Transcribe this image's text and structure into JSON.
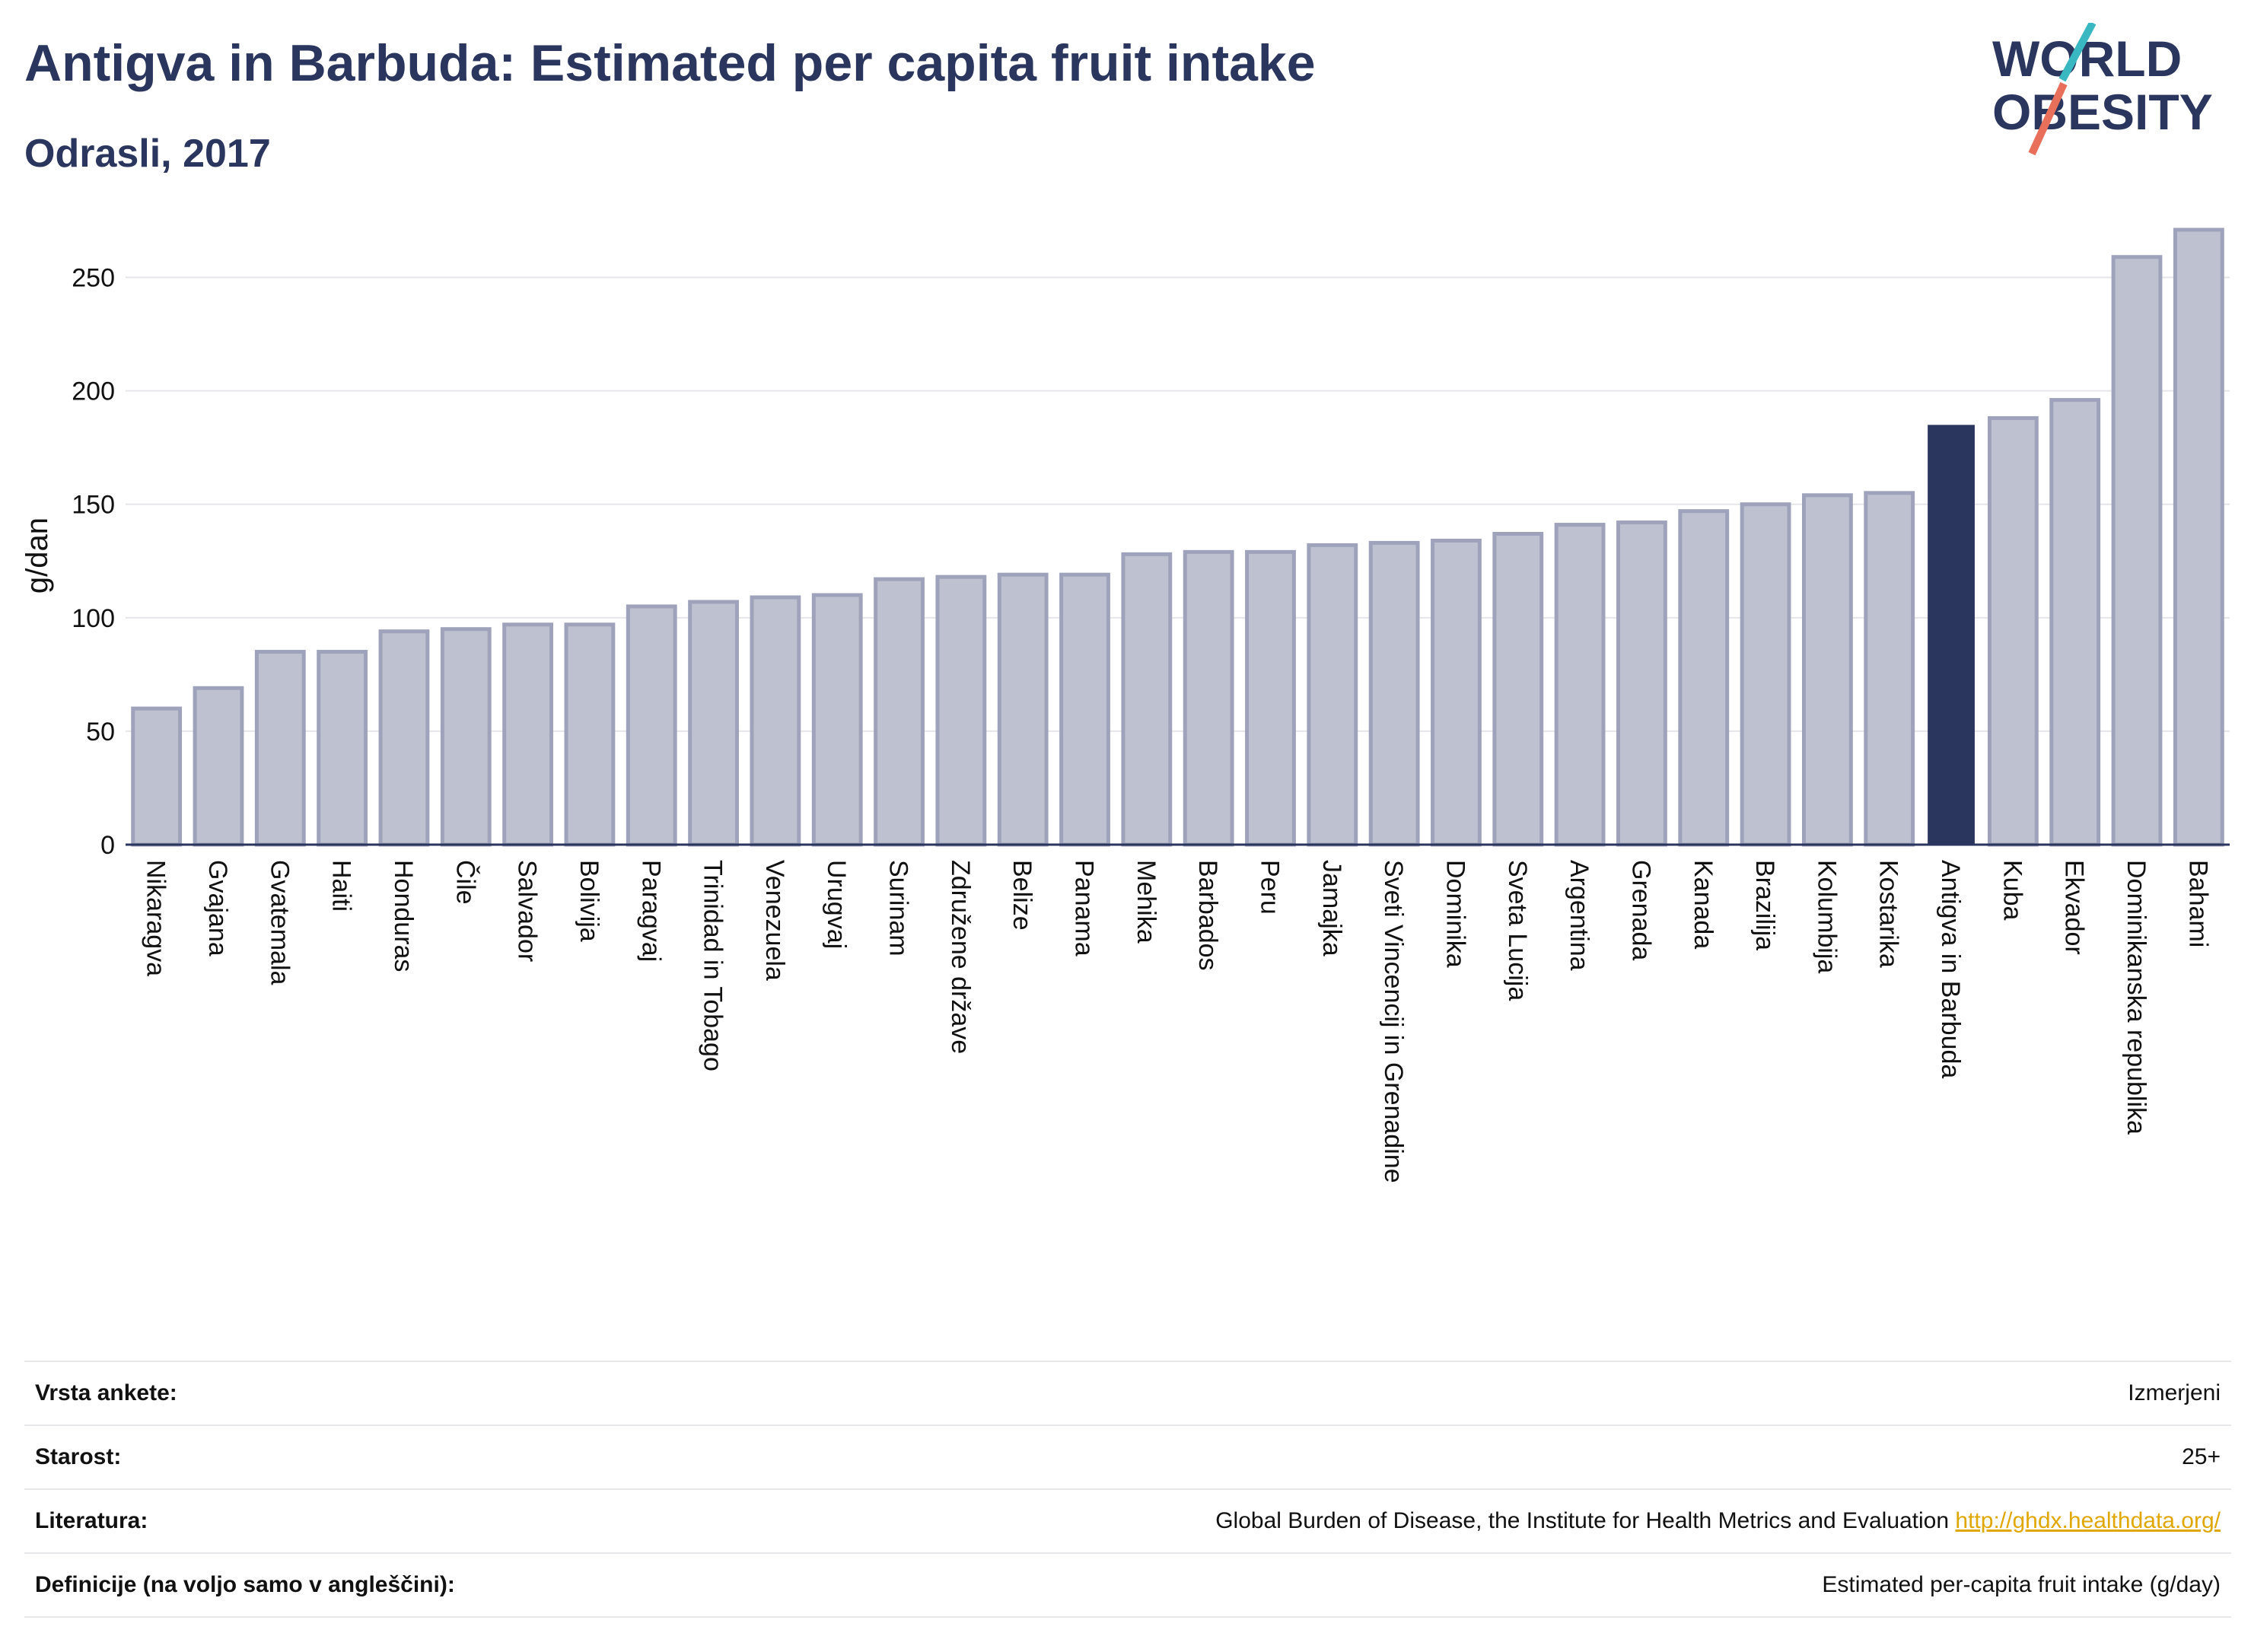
{
  "header": {
    "title": "Antigva in Barbuda: Estimated per capita fruit intake",
    "subtitle": "Odrasli, 2017"
  },
  "logo": {
    "line1": "WORLD",
    "line2": "OBESITY",
    "colors": {
      "text": "#2b365e",
      "slash_top": "#3ab8c2",
      "slash_bottom": "#e8705a"
    }
  },
  "chart_data": {
    "type": "bar",
    "title": "Antigva in Barbuda: Estimated per capita fruit intake",
    "subtitle": "Odrasli, 2017",
    "ylabel": "g/dan",
    "xlabel": "",
    "ylim": [
      0,
      275
    ],
    "yticks": [
      0,
      50,
      100,
      150,
      200,
      250
    ],
    "grid": true,
    "legend": "none",
    "colors": {
      "default": "#bec1cf",
      "default_border": "#9ea2bb",
      "highlight": "#2b365e",
      "axis": "#2b365e",
      "grid": "#e6e6ea"
    },
    "highlight": "Antigva in Barbuda",
    "categories": [
      "Nikaragva",
      "Gvajana",
      "Gvatemala",
      "Haiti",
      "Honduras",
      "Čile",
      "Salvador",
      "Bolivija",
      "Paragvaj",
      "Trinidad in Tobago",
      "Venezuela",
      "Urugvaj",
      "Surinam",
      "Združene države",
      "Belize",
      "Panama",
      "Mehika",
      "Barbados",
      "Peru",
      "Jamajka",
      "Sveti Vincencij in Grenadine",
      "Dominika",
      "Sveta Lucija",
      "Argentina",
      "Grenada",
      "Kanada",
      "Brazilija",
      "Kolumbija",
      "Kostarika",
      "Antigva in Barbuda",
      "Kuba",
      "Ekvador",
      "Dominikanska republika",
      "Bahami"
    ],
    "values": [
      60,
      69,
      85,
      85,
      94,
      95,
      97,
      97,
      105,
      107,
      109,
      110,
      117,
      118,
      119,
      119,
      128,
      129,
      129,
      132,
      133,
      134,
      137,
      141,
      142,
      147,
      150,
      154,
      155,
      185,
      188,
      196,
      259,
      271
    ]
  },
  "info": {
    "rows": [
      {
        "key": "Vrsta ankete:",
        "value": "Izmerjeni"
      },
      {
        "key": "Starost:",
        "value": "25+"
      },
      {
        "key": "Literatura:",
        "value": "Global Burden of Disease, the Institute for Health Metrics and Evaluation",
        "link": "http://ghdx.healthdata.org/"
      },
      {
        "key": "Definicije (na voljo samo v angleščini):",
        "value": "Estimated per-capita fruit intake (g/day)"
      }
    ]
  }
}
